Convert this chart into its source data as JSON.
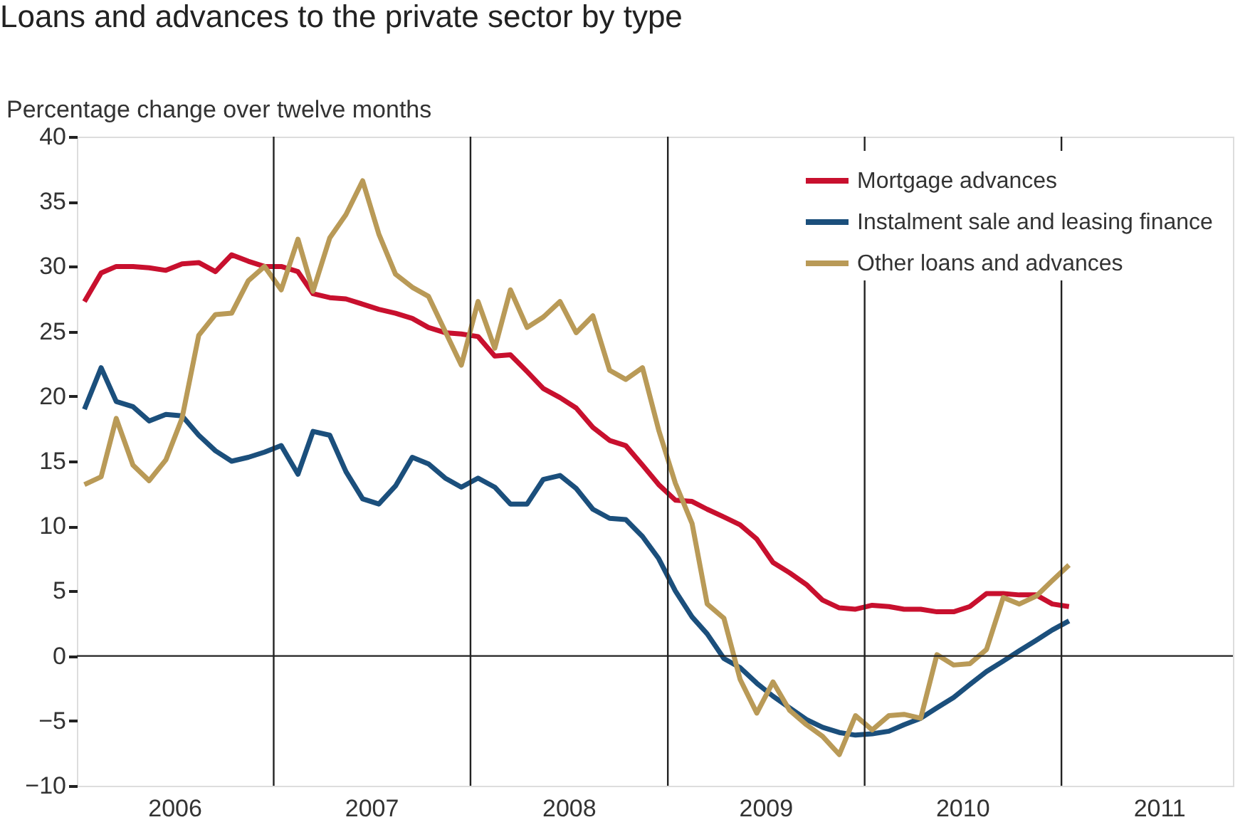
{
  "chart_data": {
    "type": "line",
    "title": "Loans and advances to the private sector by type",
    "ylabel": "Percentage change over twelve months",
    "x": [
      "2006-01-15",
      "2006-02-15",
      "2006-03-15",
      "2006-04-15",
      "2006-05-15",
      "2006-06-15",
      "2006-07-15",
      "2006-08-15",
      "2006-09-15",
      "2006-10-15",
      "2006-11-15",
      "2006-12-15",
      "2007-01-15",
      "2007-02-15",
      "2007-03-15",
      "2007-04-15",
      "2007-05-15",
      "2007-06-15",
      "2007-07-15",
      "2007-08-15",
      "2007-09-15",
      "2007-10-15",
      "2007-11-15",
      "2007-12-15",
      "2008-01-15",
      "2008-02-15",
      "2008-03-15",
      "2008-04-15",
      "2008-05-15",
      "2008-06-15",
      "2008-07-15",
      "2008-08-15",
      "2008-09-15",
      "2008-10-15",
      "2008-11-15",
      "2008-12-15",
      "2009-01-15",
      "2009-02-15",
      "2009-03-15",
      "2009-04-15",
      "2009-05-15",
      "2009-06-15",
      "2009-07-15",
      "2009-08-15",
      "2009-09-15",
      "2009-10-15",
      "2009-11-15",
      "2009-12-15",
      "2010-01-15",
      "2010-02-15",
      "2010-03-15",
      "2010-04-15",
      "2010-05-15",
      "2010-06-15",
      "2010-07-15",
      "2010-08-15",
      "2010-09-15",
      "2010-10-15",
      "2010-11-15",
      "2010-12-15",
      "2011-01-15"
    ],
    "series": [
      {
        "name": "Mortgage advances",
        "color": "#c8102e",
        "values": [
          27.3,
          29.5,
          30.0,
          30.0,
          29.9,
          29.7,
          30.2,
          30.3,
          29.6,
          30.9,
          30.4,
          30.0,
          30.0,
          29.6,
          27.9,
          27.6,
          27.5,
          27.1,
          26.7,
          26.4,
          26.0,
          25.3,
          24.9,
          24.8,
          24.6,
          23.1,
          23.2,
          21.9,
          20.6,
          19.9,
          19.1,
          17.6,
          16.6,
          16.2,
          14.7,
          13.2,
          12.0,
          11.9,
          11.3,
          10.7,
          10.1,
          9.0,
          7.2,
          6.4,
          5.5,
          4.3,
          3.7,
          3.6,
          3.9,
          3.8,
          3.6,
          3.6,
          3.4,
          3.4,
          3.8,
          4.8,
          4.8,
          4.7,
          4.7,
          4.0,
          3.8
        ]
      },
      {
        "name": "Instalment sale and leasing finance",
        "color": "#1b4f7c",
        "values": [
          19.0,
          22.2,
          19.6,
          19.2,
          18.1,
          18.6,
          18.5,
          17.0,
          15.8,
          15.0,
          15.3,
          15.7,
          16.2,
          14.0,
          17.3,
          17.0,
          14.2,
          12.1,
          11.7,
          13.1,
          15.3,
          14.8,
          13.7,
          13.0,
          13.7,
          13.0,
          11.7,
          11.7,
          13.6,
          13.9,
          12.9,
          11.3,
          10.6,
          10.5,
          9.2,
          7.5,
          5.0,
          3.0,
          1.7,
          -0.2,
          -0.9,
          -2.1,
          -3.1,
          -4.0,
          -4.9,
          -5.5,
          -5.9,
          -6.1,
          -6.0,
          -5.8,
          -5.3,
          -4.8,
          -4.0,
          -3.2,
          -2.2,
          -1.2,
          -0.4,
          0.4,
          1.2,
          2.0,
          2.7
        ]
      },
      {
        "name": "Other loans and advances",
        "color": "#b99a57",
        "values": [
          13.2,
          13.8,
          18.3,
          14.7,
          13.5,
          15.1,
          18.3,
          24.7,
          26.3,
          26.4,
          28.9,
          30.0,
          28.2,
          32.1,
          28.1,
          32.2,
          34.0,
          36.6,
          32.5,
          29.4,
          28.4,
          27.7,
          25.0,
          22.4,
          27.3,
          23.7,
          28.2,
          25.3,
          26.1,
          27.3,
          24.9,
          26.2,
          22.0,
          21.3,
          22.2,
          17.4,
          13.3,
          10.2,
          4.0,
          2.9,
          -1.8,
          -4.4,
          -2.0,
          -4.2,
          -5.3,
          -6.2,
          -7.6,
          -4.6,
          -5.7,
          -4.6,
          -4.5,
          -4.8,
          0.1,
          -0.7,
          -0.6,
          0.5,
          4.5,
          4.0,
          4.6,
          5.8,
          7.0
        ]
      }
    ],
    "xlim": [
      "2006-01-01",
      "2011-11-15"
    ],
    "xticks": [
      {
        "value": "2006-07-01",
        "label": "2006"
      },
      {
        "value": "2007-07-01",
        "label": "2007"
      },
      {
        "value": "2008-07-01",
        "label": "2008"
      },
      {
        "value": "2009-07-01",
        "label": "2009"
      },
      {
        "value": "2010-07-01",
        "label": "2010"
      },
      {
        "value": "2011-07-01",
        "label": "2011"
      }
    ],
    "ylim": [
      -10,
      40
    ],
    "yticks": [
      -10,
      -5,
      0,
      5,
      10,
      15,
      20,
      25,
      30,
      35,
      40
    ],
    "ref_lines": [
      {
        "axis": "y",
        "value": 0
      },
      {
        "axis": "x",
        "value": "2007-01-01"
      },
      {
        "axis": "x",
        "value": "2008-01-01"
      },
      {
        "axis": "x",
        "value": "2009-01-01"
      },
      {
        "axis": "x",
        "value": "2010-01-01"
      },
      {
        "axis": "x",
        "value": "2011-01-01"
      }
    ],
    "grid": false,
    "legend": "top right",
    "marker": "none",
    "line_style": "solid"
  }
}
